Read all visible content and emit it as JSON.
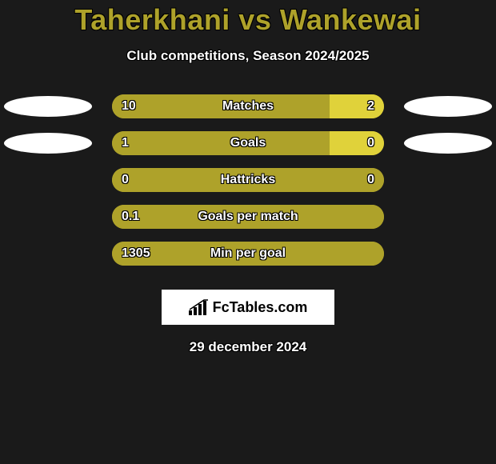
{
  "title": "Taherkhani vs Wankewai",
  "subtitle": "Club competitions, Season 2024/2025",
  "title_color": "#aea22a",
  "subtitle_color": "#ffffff",
  "background_color": "#1a1a1a",
  "bar_base_color": "#aea22a",
  "bar_right_color": "#e0d23a",
  "ellipse_color": "#ffffff",
  "text_outline_color": "#000000",
  "rows": [
    {
      "left_val": "10",
      "label": "Matches",
      "right_val": "2",
      "left_pct": 80,
      "right_pct": 20,
      "show_left_ellipse": true,
      "show_right_ellipse": true
    },
    {
      "left_val": "1",
      "label": "Goals",
      "right_val": "0",
      "left_pct": 80,
      "right_pct": 20,
      "show_left_ellipse": true,
      "show_right_ellipse": true
    },
    {
      "left_val": "0",
      "label": "Hattricks",
      "right_val": "0",
      "left_pct": 100,
      "right_pct": 0,
      "show_left_ellipse": false,
      "show_right_ellipse": false
    },
    {
      "left_val": "0.1",
      "label": "Goals per match",
      "right_val": "",
      "left_pct": 100,
      "right_pct": 0,
      "show_left_ellipse": false,
      "show_right_ellipse": false
    },
    {
      "left_val": "1305",
      "label": "Min per goal",
      "right_val": "",
      "left_pct": 100,
      "right_pct": 0,
      "show_left_ellipse": false,
      "show_right_ellipse": false
    }
  ],
  "logo_text": "FcTables.com",
  "date": "29 december 2024"
}
